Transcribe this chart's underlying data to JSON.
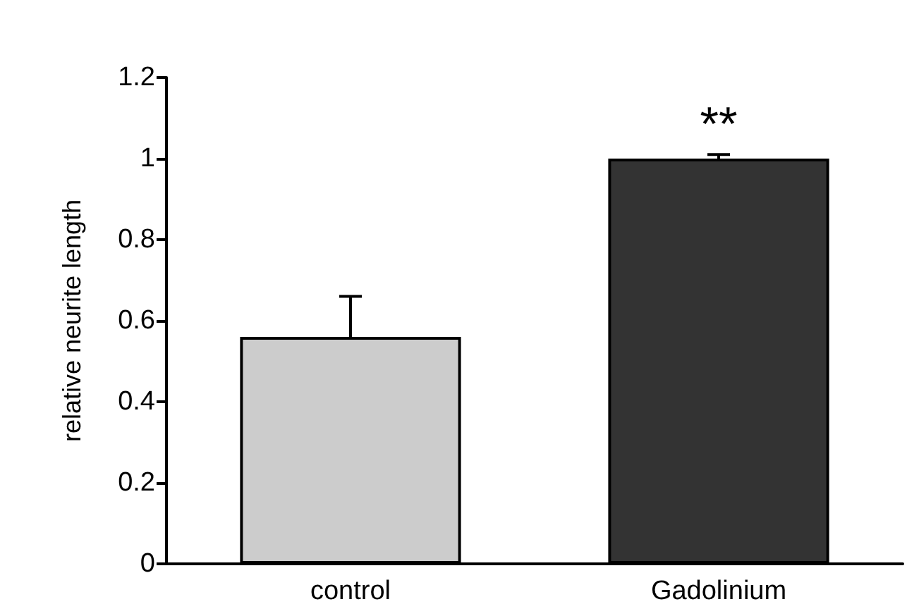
{
  "chart_data": {
    "type": "bar",
    "ylabel": "relative neurite length",
    "categories": [
      "control",
      "Gadolinium"
    ],
    "values": [
      0.56,
      1.0
    ],
    "colors": [
      "#cccccc",
      "#333333"
    ],
    "errors": [
      [
        0.56,
        0.66
      ],
      [
        1.0,
        1.01
      ]
    ],
    "ylim": [
      0,
      1.2
    ],
    "yticks": [
      0,
      0.2,
      0.4,
      0.6,
      0.8,
      1,
      1.2
    ],
    "grid": false,
    "annotations": [
      "**"
    ]
  }
}
